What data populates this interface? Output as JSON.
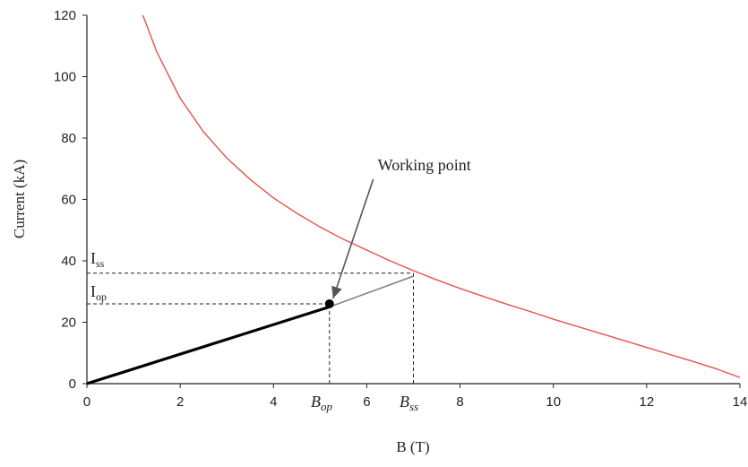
{
  "chart_data": {
    "type": "line",
    "title": "",
    "xlabel": "B (T)",
    "ylabel": "Current (kA)",
    "xlim": [
      0,
      14
    ],
    "ylim": [
      0,
      120
    ],
    "xticks": [
      0,
      2,
      4,
      6,
      8,
      10,
      12,
      14
    ],
    "yticks": [
      0,
      20,
      40,
      60,
      80,
      100,
      120
    ],
    "grid": false,
    "legend": "none",
    "series": [
      {
        "id": "critical",
        "color": "#e8504a",
        "x": [
          1.2,
          1.5,
          2.0,
          2.5,
          3.0,
          3.5,
          4.0,
          4.5,
          5.0,
          5.5,
          6.0,
          6.5,
          7.0,
          7.5,
          8.0,
          8.5,
          9.0,
          9.5,
          10.0,
          10.5,
          11.0,
          11.5,
          12.0,
          12.5,
          13.0,
          13.5,
          14.0
        ],
        "y": [
          120,
          108,
          93,
          82,
          73.5,
          66.5,
          60.5,
          55.5,
          51,
          47,
          43.5,
          40,
          36.8,
          33.8,
          31,
          28.4,
          25.9,
          23.5,
          21,
          18.7,
          16.4,
          14.1,
          11.8,
          9.5,
          7.2,
          4.8,
          2
        ]
      },
      {
        "id": "load-line-thick",
        "color": "#000000",
        "x": [
          0,
          5.2
        ],
        "y": [
          0,
          25
        ]
      },
      {
        "id": "load-line-thin",
        "color": "#808080",
        "x": [
          5.2,
          7.0
        ],
        "y": [
          25,
          35
        ]
      }
    ],
    "points": [
      {
        "id": "working-point",
        "x": 5.2,
        "y": 26
      }
    ],
    "reference_lines": [
      {
        "id": "iss",
        "y": 36,
        "x_to": 7.0
      },
      {
        "id": "iop",
        "y": 26,
        "x_to": 5.2
      },
      {
        "id": "bop",
        "x": 5.2,
        "y_to": 26
      },
      {
        "id": "bss",
        "x": 7.0,
        "y_to": 36
      }
    ],
    "annotations": {
      "working_point": {
        "text": "Working point",
        "x": 6.6,
        "y": 71
      },
      "iss": {
        "main": "I",
        "sub": "ss"
      },
      "iop": {
        "main": "I",
        "sub": "op"
      },
      "bop": {
        "main": "B",
        "sub": "op"
      },
      "bss": {
        "main": "B",
        "sub": "ss"
      }
    }
  }
}
